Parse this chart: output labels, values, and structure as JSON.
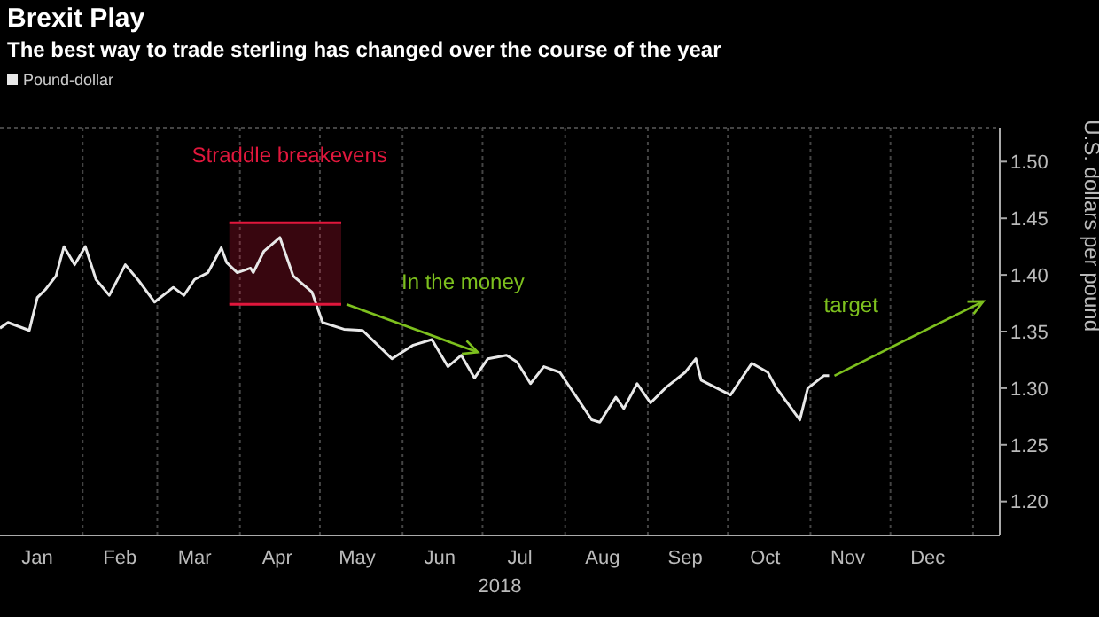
{
  "chart_data": {
    "type": "line",
    "title": "Brexit Play",
    "subtitle": "The best way to trade sterling has changed over the course of the year",
    "xlabel": "2018",
    "ylabel": "U.S. dollars per pound",
    "series": [
      {
        "name": "Pound-dollar",
        "color": "#e8e8e8",
        "x": [
          "2018-01-01",
          "2018-01-04",
          "2018-01-12",
          "2018-01-15",
          "2018-01-18",
          "2018-01-22",
          "2018-01-25",
          "2018-01-29",
          "2018-02-02",
          "2018-02-06",
          "2018-02-11",
          "2018-02-17",
          "2018-02-22",
          "2018-02-28",
          "2018-03-07",
          "2018-03-11",
          "2018-03-15",
          "2018-03-20",
          "2018-03-25",
          "2018-03-27",
          "2018-03-31",
          "2018-04-05",
          "2018-04-06",
          "2018-04-10",
          "2018-04-16",
          "2018-04-21",
          "2018-04-28",
          "2018-05-02",
          "2018-05-10",
          "2018-05-17",
          "2018-05-28",
          "2018-06-05",
          "2018-06-12",
          "2018-06-18",
          "2018-06-23",
          "2018-06-28",
          "2018-07-03",
          "2018-07-10",
          "2018-07-14",
          "2018-07-19",
          "2018-07-24",
          "2018-07-30",
          "2018-08-11",
          "2018-08-14",
          "2018-08-20",
          "2018-08-23",
          "2018-08-28",
          "2018-09-02",
          "2018-09-08",
          "2018-09-15",
          "2018-09-19",
          "2018-09-21",
          "2018-10-02",
          "2018-10-10",
          "2018-10-16",
          "2018-10-19",
          "2018-10-28",
          "2018-10-31",
          "2018-11-06",
          "2018-11-08"
        ],
        "values": [
          1.353,
          1.358,
          1.351,
          1.38,
          1.387,
          1.399,
          1.425,
          1.409,
          1.425,
          1.396,
          1.382,
          1.409,
          1.395,
          1.376,
          1.389,
          1.382,
          1.396,
          1.402,
          1.424,
          1.411,
          1.402,
          1.406,
          1.402,
          1.421,
          1.433,
          1.399,
          1.385,
          1.358,
          1.352,
          1.351,
          1.326,
          1.338,
          1.343,
          1.319,
          1.329,
          1.309,
          1.326,
          1.329,
          1.323,
          1.304,
          1.319,
          1.314,
          1.272,
          1.27,
          1.292,
          1.282,
          1.304,
          1.287,
          1.301,
          1.314,
          1.326,
          1.307,
          1.294,
          1.322,
          1.314,
          1.301,
          1.272,
          1.3,
          1.311,
          1.311
        ]
      },
      {
        "name": "Straddle breakevens",
        "color": "#e0173c",
        "x": [
          "2018-03-28",
          "2018-05-09"
        ],
        "values": [
          1.446,
          1.446
        ],
        "lower": [
          1.374,
          1.374
        ],
        "upper": [
          1.446,
          1.446
        ]
      },
      {
        "color": "#e0173c",
        "x": [
          "2018-03-28",
          "2018-05-09"
        ],
        "values": [
          1.374,
          1.374
        ]
      }
    ],
    "xlim": [
      "2018-01-01",
      "2019-01-11"
    ],
    "xticks": [
      {
        "value": "2018-01-15",
        "label": "Jan"
      },
      {
        "value": "2018-02-01",
        "label": null
      },
      {
        "value": "2018-02-15",
        "label": "Feb"
      },
      {
        "value": "2018-03-01",
        "label": null
      },
      {
        "value": "2018-03-15",
        "label": "Mar"
      },
      {
        "value": "2018-04-01",
        "label": null
      },
      {
        "value": "2018-04-15",
        "label": "Apr"
      },
      {
        "value": "2018-05-01",
        "label": null
      },
      {
        "value": "2018-05-15",
        "label": "May"
      },
      {
        "value": "2018-06-01",
        "label": null
      },
      {
        "value": "2018-06-15",
        "label": "Jun"
      },
      {
        "value": "2018-07-01",
        "label": null
      },
      {
        "value": "2018-07-15",
        "label": "Jul"
      },
      {
        "value": "2018-08-01",
        "label": null
      },
      {
        "value": "2018-08-15",
        "label": "Aug"
      },
      {
        "value": "2018-09-01",
        "label": null
      },
      {
        "value": "2018-09-15",
        "label": "Sep"
      },
      {
        "value": "2018-10-01",
        "label": null
      },
      {
        "value": "2018-10-15",
        "label": "Oct"
      },
      {
        "value": "2018-11-01",
        "label": null
      },
      {
        "value": "2018-11-15",
        "label": "Nov"
      },
      {
        "value": "2018-12-01",
        "label": null
      },
      {
        "value": "2018-12-15",
        "label": "Dec"
      },
      {
        "value": "2019-01-01",
        "label": null
      }
    ],
    "ylim": [
      1.17,
      1.53
    ],
    "yticks": [
      {
        "value": 1.2,
        "label": "1.20"
      },
      {
        "value": 1.25,
        "label": "1.25"
      },
      {
        "value": 1.3,
        "label": "1.30"
      },
      {
        "value": 1.35,
        "label": "1.35"
      },
      {
        "value": 1.4,
        "label": "1.40"
      },
      {
        "value": 1.45,
        "label": "1.45"
      },
      {
        "value": 1.5,
        "label": "1.50"
      }
    ],
    "annotations": [
      {
        "text": "In the money",
        "x": "2018-05-09",
        "y": 1.374
      },
      "target"
    ],
    "grid": true,
    "legend": "top left",
    "marker": "none",
    "line_style": "solid"
  }
}
